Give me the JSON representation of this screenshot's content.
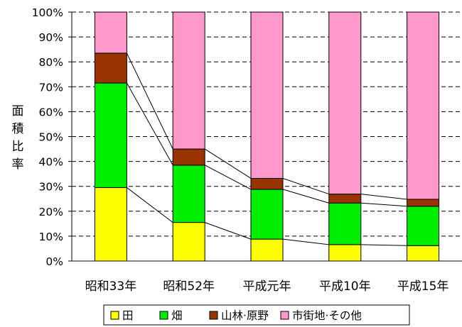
{
  "chart_data": {
    "type": "bar",
    "stacked": true,
    "categories": [
      "昭和33年",
      "昭和52年",
      "平成元年",
      "平成10年",
      "平成15年"
    ],
    "series": [
      {
        "name": "田",
        "color": "#ffff00",
        "values": [
          29.5,
          15.5,
          8.8,
          6.6,
          6.2
        ]
      },
      {
        "name": "畑",
        "color": "#00ee00",
        "values": [
          42.0,
          23.0,
          20.0,
          16.7,
          15.8
        ]
      },
      {
        "name": "山林·原野",
        "color": "#993300",
        "values": [
          12.0,
          6.5,
          4.4,
          3.6,
          2.8
        ]
      },
      {
        "name": "市街地·その他",
        "color": "#ff99cc",
        "values": [
          16.5,
          55.0,
          66.8,
          73.1,
          75.2
        ]
      }
    ],
    "ylabel": "面積比率",
    "ylim": [
      0,
      100
    ],
    "yticks": [
      "0%",
      "10%",
      "20%",
      "30%",
      "40%",
      "50%",
      "60%",
      "70%",
      "80%",
      "90%",
      "100%"
    ],
    "grid": true,
    "series_connector_lines": true,
    "legend_position": "bottom"
  }
}
